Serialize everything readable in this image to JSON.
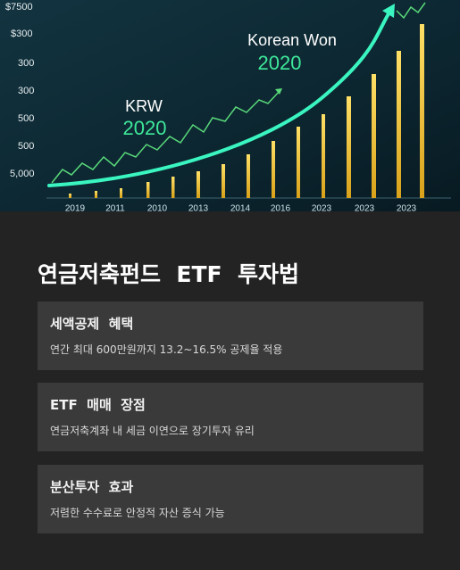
{
  "hero": {
    "y_labels": [
      "$7500",
      "$300",
      "300",
      "300",
      "500",
      "500",
      "5,000"
    ],
    "x_labels": [
      "2019",
      "2011",
      "2010",
      "2013",
      "2014",
      "2016",
      "2023",
      "2023",
      "2023"
    ],
    "annotation_left": {
      "label": "KRW",
      "year": "2020"
    },
    "annotation_right": {
      "label": "Korean Won",
      "year": "2020"
    }
  },
  "title": "연금저축펀드  ETF  투자법",
  "cards": [
    {
      "title": "세액공제  혜택",
      "description": "연간 최대 600만원까지 13.2~16.5% 공제율 적용"
    },
    {
      "title": "ETF  매매  장점",
      "description": "연금저축계좌 내 세금 이연으로 장기투자 유리"
    },
    {
      "title": "분산투자  효과",
      "description": "저렴한 수수료로 안정적 자산 증식 가능"
    }
  ]
}
